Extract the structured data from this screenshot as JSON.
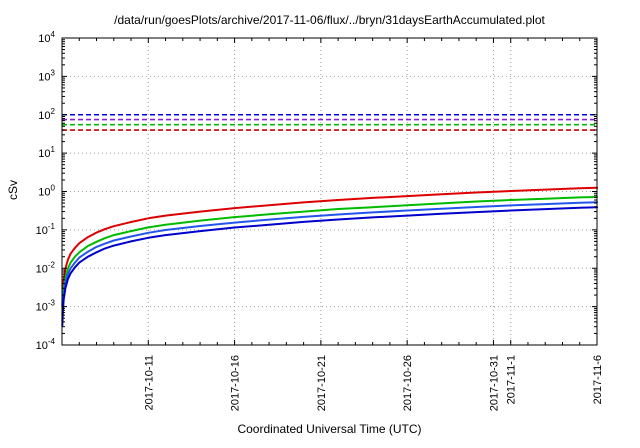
{
  "chart_data": {
    "type": "line",
    "title": "/data/run/goesPlots/archive/2017-11-06/flux/../bryn/31daysEarthAccumulated.plot",
    "xlabel": "Coordinated Universal Time (UTC)",
    "ylabel": "cSv",
    "y_scale": "log",
    "ylim": [
      0.0001,
      10000
    ],
    "x_range": [
      0,
      31
    ],
    "grid": true,
    "x_minor_tick_every_days": 1,
    "y_ticks": [
      {
        "base": "10",
        "exp": "-4"
      },
      {
        "base": "10",
        "exp": "-3"
      },
      {
        "base": "10",
        "exp": "-2"
      },
      {
        "base": "10",
        "exp": "-1"
      },
      {
        "base": "10",
        "exp": "0"
      },
      {
        "base": "10",
        "exp": "1"
      },
      {
        "base": "10",
        "exp": "2"
      },
      {
        "base": "10",
        "exp": "3"
      },
      {
        "base": "10",
        "exp": "4"
      }
    ],
    "x_ticks": [
      {
        "day": 5,
        "label": "2017-10-11"
      },
      {
        "day": 10,
        "label": "2017-10-16"
      },
      {
        "day": 15,
        "label": "2017-10-21"
      },
      {
        "day": 20,
        "label": "2017-10-26"
      },
      {
        "day": 25,
        "label": "2017-10-31"
      },
      {
        "day": 26,
        "label": "2017-11-1"
      },
      {
        "day": 31,
        "label": "2017-11-6"
      }
    ],
    "limit_lines": [
      {
        "value": 100,
        "color": "#0000dd"
      },
      {
        "value": 75,
        "color": "#8822cc"
      },
      {
        "value": 55,
        "color": "#00bb00"
      },
      {
        "value": 40,
        "color": "#cc0000"
      }
    ],
    "series": [
      {
        "id": "red",
        "color": "#dd0000",
        "points": [
          [
            0.02,
            0.001
          ],
          [
            0.05,
            0.0025
          ],
          [
            0.1,
            0.005
          ],
          [
            0.2,
            0.01
          ],
          [
            0.35,
            0.017
          ],
          [
            0.5,
            0.024
          ],
          [
            0.75,
            0.034
          ],
          [
            1,
            0.045
          ],
          [
            1.5,
            0.065
          ],
          [
            2,
            0.085
          ],
          [
            2.5,
            0.105
          ],
          [
            3,
            0.125
          ],
          [
            4,
            0.16
          ],
          [
            5,
            0.2
          ],
          [
            6,
            0.235
          ],
          [
            8,
            0.3
          ],
          [
            10,
            0.37
          ],
          [
            12,
            0.44
          ],
          [
            14,
            0.52
          ],
          [
            16,
            0.6
          ],
          [
            18,
            0.68
          ],
          [
            20,
            0.76
          ],
          [
            22,
            0.85
          ],
          [
            24,
            0.94
          ],
          [
            26,
            1.03
          ],
          [
            28,
            1.12
          ],
          [
            30,
            1.21
          ],
          [
            31,
            1.25
          ]
        ]
      },
      {
        "id": "green",
        "color": "#00bb00",
        "points": [
          [
            0.02,
            0.0006
          ],
          [
            0.05,
            0.0015
          ],
          [
            0.1,
            0.0029
          ],
          [
            0.2,
            0.0058
          ],
          [
            0.35,
            0.0099
          ],
          [
            0.5,
            0.014
          ],
          [
            0.75,
            0.02
          ],
          [
            1,
            0.026
          ],
          [
            1.5,
            0.038
          ],
          [
            2,
            0.049
          ],
          [
            2.5,
            0.061
          ],
          [
            3,
            0.073
          ],
          [
            4,
            0.093
          ],
          [
            5,
            0.116
          ],
          [
            6,
            0.136
          ],
          [
            8,
            0.174
          ],
          [
            10,
            0.215
          ],
          [
            12,
            0.255
          ],
          [
            14,
            0.3
          ],
          [
            16,
            0.35
          ],
          [
            18,
            0.39
          ],
          [
            20,
            0.44
          ],
          [
            22,
            0.49
          ],
          [
            24,
            0.55
          ],
          [
            26,
            0.6
          ],
          [
            28,
            0.65
          ],
          [
            30,
            0.7
          ],
          [
            31,
            0.72
          ]
        ]
      },
      {
        "id": "blue-upper",
        "color": "#2255ee",
        "points": [
          [
            0.02,
            0.00042
          ],
          [
            0.05,
            0.00105
          ],
          [
            0.1,
            0.0021
          ],
          [
            0.2,
            0.0042
          ],
          [
            0.35,
            0.0071
          ],
          [
            0.5,
            0.01
          ],
          [
            0.75,
            0.014
          ],
          [
            1,
            0.019
          ],
          [
            1.5,
            0.027
          ],
          [
            2,
            0.036
          ],
          [
            2.5,
            0.044
          ],
          [
            3,
            0.053
          ],
          [
            4,
            0.067
          ],
          [
            5,
            0.084
          ],
          [
            6,
            0.099
          ],
          [
            8,
            0.126
          ],
          [
            10,
            0.155
          ],
          [
            12,
            0.185
          ],
          [
            14,
            0.218
          ],
          [
            16,
            0.252
          ],
          [
            18,
            0.286
          ],
          [
            20,
            0.319
          ],
          [
            22,
            0.357
          ],
          [
            24,
            0.395
          ],
          [
            26,
            0.433
          ],
          [
            28,
            0.47
          ],
          [
            30,
            0.508
          ],
          [
            31,
            0.525
          ]
        ]
      },
      {
        "id": "blue-lower",
        "color": "#0000cc",
        "points": [
          [
            0.02,
            0.00031
          ],
          [
            0.05,
            0.00078
          ],
          [
            0.1,
            0.00155
          ],
          [
            0.2,
            0.0031
          ],
          [
            0.35,
            0.0053
          ],
          [
            0.5,
            0.0074
          ],
          [
            0.75,
            0.0105
          ],
          [
            1,
            0.014
          ],
          [
            1.5,
            0.02
          ],
          [
            2,
            0.026
          ],
          [
            2.5,
            0.033
          ],
          [
            3,
            0.039
          ],
          [
            4,
            0.05
          ],
          [
            5,
            0.062
          ],
          [
            6,
            0.073
          ],
          [
            8,
            0.093
          ],
          [
            10,
            0.115
          ],
          [
            12,
            0.136
          ],
          [
            14,
            0.161
          ],
          [
            16,
            0.186
          ],
          [
            18,
            0.211
          ],
          [
            20,
            0.236
          ],
          [
            22,
            0.264
          ],
          [
            24,
            0.291
          ],
          [
            26,
            0.319
          ],
          [
            28,
            0.347
          ],
          [
            30,
            0.375
          ],
          [
            31,
            0.388
          ]
        ]
      }
    ]
  }
}
